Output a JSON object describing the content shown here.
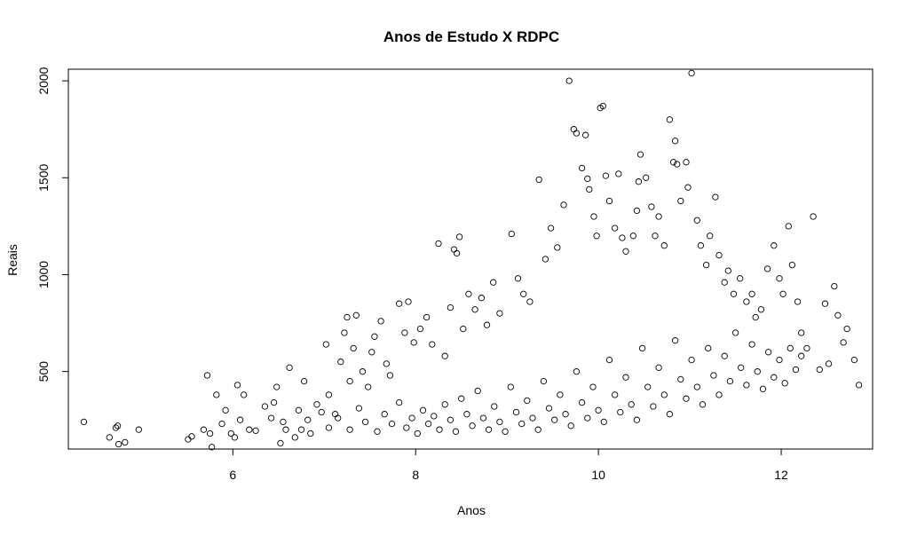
{
  "chart_data": {
    "type": "scatter",
    "title": "Anos de Estudo X RDPC",
    "xlabel": "Anos",
    "ylabel": "Reais",
    "xlim": [
      4.2,
      13.0
    ],
    "ylim": [
      100,
      2060
    ],
    "x_ticks": [
      "6",
      "8",
      "10",
      "12"
    ],
    "y_ticks": [
      "500",
      "1000",
      "1500",
      "2000"
    ],
    "x_tick_values": [
      6,
      8,
      10,
      12
    ],
    "y_tick_values": [
      500,
      1000,
      1500,
      2000
    ],
    "grid": false,
    "legend": "none",
    "marker": "open-circle",
    "marker_color": "#000000",
    "points": [
      [
        4.37,
        240
      ],
      [
        4.65,
        160
      ],
      [
        4.72,
        210
      ],
      [
        4.75,
        125
      ],
      [
        4.74,
        220
      ],
      [
        4.82,
        135
      ],
      [
        4.97,
        200
      ],
      [
        5.51,
        150
      ],
      [
        5.55,
        165
      ],
      [
        5.68,
        200
      ],
      [
        5.72,
        480
      ],
      [
        5.75,
        180
      ],
      [
        5.77,
        110
      ],
      [
        5.82,
        380
      ],
      [
        5.88,
        230
      ],
      [
        5.92,
        300
      ],
      [
        5.98,
        180
      ],
      [
        6.02,
        160
      ],
      [
        6.05,
        430
      ],
      [
        6.08,
        250
      ],
      [
        6.12,
        380
      ],
      [
        6.18,
        200
      ],
      [
        6.25,
        195
      ],
      [
        6.35,
        320
      ],
      [
        6.42,
        260
      ],
      [
        6.45,
        340
      ],
      [
        6.48,
        420
      ],
      [
        6.52,
        130
      ],
      [
        6.55,
        240
      ],
      [
        6.58,
        200
      ],
      [
        6.62,
        520
      ],
      [
        6.68,
        160
      ],
      [
        6.72,
        300
      ],
      [
        6.75,
        200
      ],
      [
        6.78,
        450
      ],
      [
        6.82,
        250
      ],
      [
        6.85,
        180
      ],
      [
        6.92,
        330
      ],
      [
        6.97,
        290
      ],
      [
        7.02,
        640
      ],
      [
        7.05,
        380
      ],
      [
        7.12,
        280
      ],
      [
        7.18,
        550
      ],
      [
        7.22,
        700
      ],
      [
        7.25,
        780
      ],
      [
        7.28,
        450
      ],
      [
        7.32,
        620
      ],
      [
        7.35,
        790
      ],
      [
        7.42,
        500
      ],
      [
        7.48,
        420
      ],
      [
        7.52,
        600
      ],
      [
        7.55,
        680
      ],
      [
        7.62,
        760
      ],
      [
        7.68,
        540
      ],
      [
        7.72,
        480
      ],
      [
        7.82,
        850
      ],
      [
        7.88,
        700
      ],
      [
        7.92,
        860
      ],
      [
        7.98,
        650
      ],
      [
        8.05,
        720
      ],
      [
        8.12,
        780
      ],
      [
        8.18,
        640
      ],
      [
        8.25,
        1160
      ],
      [
        8.32,
        580
      ],
      [
        8.38,
        830
      ],
      [
        8.42,
        1130
      ],
      [
        8.45,
        1110
      ],
      [
        8.48,
        1195
      ],
      [
        8.52,
        720
      ],
      [
        8.58,
        900
      ],
      [
        8.65,
        820
      ],
      [
        8.72,
        880
      ],
      [
        8.78,
        740
      ],
      [
        8.85,
        960
      ],
      [
        8.92,
        800
      ],
      [
        9.05,
        1210
      ],
      [
        9.12,
        980
      ],
      [
        9.18,
        900
      ],
      [
        9.25,
        860
      ],
      [
        9.35,
        1490
      ],
      [
        9.42,
        1080
      ],
      [
        9.48,
        1240
      ],
      [
        9.55,
        1140
      ],
      [
        9.62,
        1360
      ],
      [
        9.68,
        2000
      ],
      [
        9.73,
        1750
      ],
      [
        9.76,
        1730
      ],
      [
        9.82,
        1550
      ],
      [
        9.86,
        1720
      ],
      [
        9.88,
        1495
      ],
      [
        9.9,
        1440
      ],
      [
        9.95,
        1300
      ],
      [
        9.98,
        1200
      ],
      [
        10.02,
        1860
      ],
      [
        10.05,
        1870
      ],
      [
        10.08,
        1510
      ],
      [
        10.12,
        1380
      ],
      [
        10.18,
        1240
      ],
      [
        10.22,
        1520
      ],
      [
        10.26,
        1190
      ],
      [
        10.3,
        1120
      ],
      [
        10.38,
        1200
      ],
      [
        10.42,
        1330
      ],
      [
        10.44,
        1480
      ],
      [
        10.46,
        1620
      ],
      [
        10.52,
        1500
      ],
      [
        10.58,
        1350
      ],
      [
        10.62,
        1200
      ],
      [
        10.66,
        1300
      ],
      [
        10.72,
        1150
      ],
      [
        10.78,
        1800
      ],
      [
        10.82,
        1580
      ],
      [
        10.84,
        1690
      ],
      [
        10.86,
        1570
      ],
      [
        10.9,
        1380
      ],
      [
        10.96,
        1580
      ],
      [
        10.98,
        1450
      ],
      [
        11.02,
        2040
      ],
      [
        11.08,
        1280
      ],
      [
        11.12,
        1150
      ],
      [
        11.18,
        1050
      ],
      [
        11.22,
        1200
      ],
      [
        11.28,
        1400
      ],
      [
        11.32,
        1100
      ],
      [
        11.38,
        960
      ],
      [
        11.42,
        1020
      ],
      [
        11.48,
        900
      ],
      [
        11.55,
        980
      ],
      [
        11.62,
        860
      ],
      [
        11.68,
        900
      ],
      [
        11.72,
        780
      ],
      [
        11.78,
        820
      ],
      [
        11.85,
        1030
      ],
      [
        11.92,
        1150
      ],
      [
        11.98,
        980
      ],
      [
        12.02,
        900
      ],
      [
        12.08,
        1250
      ],
      [
        12.12,
        1050
      ],
      [
        12.18,
        860
      ],
      [
        12.22,
        700
      ],
      [
        12.28,
        620
      ],
      [
        12.35,
        1300
      ],
      [
        12.42,
        510
      ],
      [
        12.48,
        850
      ],
      [
        12.52,
        540
      ],
      [
        12.58,
        940
      ],
      [
        12.62,
        790
      ],
      [
        12.68,
        650
      ],
      [
        12.72,
        720
      ],
      [
        12.8,
        560
      ],
      [
        12.85,
        430
      ],
      [
        7.05,
        210
      ],
      [
        7.15,
        260
      ],
      [
        7.28,
        200
      ],
      [
        7.38,
        310
      ],
      [
        7.45,
        240
      ],
      [
        7.58,
        190
      ],
      [
        7.66,
        280
      ],
      [
        7.74,
        230
      ],
      [
        7.82,
        340
      ],
      [
        7.9,
        210
      ],
      [
        7.96,
        260
      ],
      [
        8.02,
        180
      ],
      [
        8.08,
        300
      ],
      [
        8.14,
        230
      ],
      [
        8.2,
        270
      ],
      [
        8.26,
        200
      ],
      [
        8.32,
        330
      ],
      [
        8.38,
        250
      ],
      [
        8.44,
        190
      ],
      [
        8.5,
        360
      ],
      [
        8.56,
        280
      ],
      [
        8.62,
        220
      ],
      [
        8.68,
        400
      ],
      [
        8.74,
        260
      ],
      [
        8.8,
        200
      ],
      [
        8.86,
        320
      ],
      [
        8.92,
        240
      ],
      [
        8.98,
        190
      ],
      [
        9.04,
        420
      ],
      [
        9.1,
        290
      ],
      [
        9.16,
        230
      ],
      [
        9.22,
        350
      ],
      [
        9.28,
        260
      ],
      [
        9.34,
        200
      ],
      [
        9.4,
        450
      ],
      [
        9.46,
        310
      ],
      [
        9.52,
        250
      ],
      [
        9.58,
        380
      ],
      [
        9.64,
        280
      ],
      [
        9.7,
        220
      ],
      [
        9.76,
        500
      ],
      [
        9.82,
        340
      ],
      [
        9.88,
        260
      ],
      [
        9.94,
        420
      ],
      [
        10.0,
        300
      ],
      [
        10.06,
        240
      ],
      [
        10.12,
        560
      ],
      [
        10.18,
        380
      ],
      [
        10.24,
        290
      ],
      [
        10.3,
        470
      ],
      [
        10.36,
        330
      ],
      [
        10.42,
        250
      ],
      [
        10.48,
        620
      ],
      [
        10.54,
        420
      ],
      [
        10.6,
        320
      ],
      [
        10.66,
        520
      ],
      [
        10.72,
        380
      ],
      [
        10.78,
        280
      ],
      [
        10.84,
        660
      ],
      [
        10.9,
        460
      ],
      [
        10.96,
        360
      ],
      [
        11.02,
        560
      ],
      [
        11.08,
        420
      ],
      [
        11.14,
        330
      ],
      [
        11.2,
        620
      ],
      [
        11.26,
        480
      ],
      [
        11.32,
        380
      ],
      [
        11.38,
        580
      ],
      [
        11.44,
        450
      ],
      [
        11.5,
        700
      ],
      [
        11.56,
        520
      ],
      [
        11.62,
        430
      ],
      [
        11.68,
        640
      ],
      [
        11.74,
        500
      ],
      [
        11.8,
        410
      ],
      [
        11.86,
        600
      ],
      [
        11.92,
        470
      ],
      [
        11.98,
        560
      ],
      [
        12.04,
        440
      ],
      [
        12.1,
        620
      ],
      [
        12.16,
        510
      ],
      [
        12.22,
        580
      ]
    ]
  }
}
